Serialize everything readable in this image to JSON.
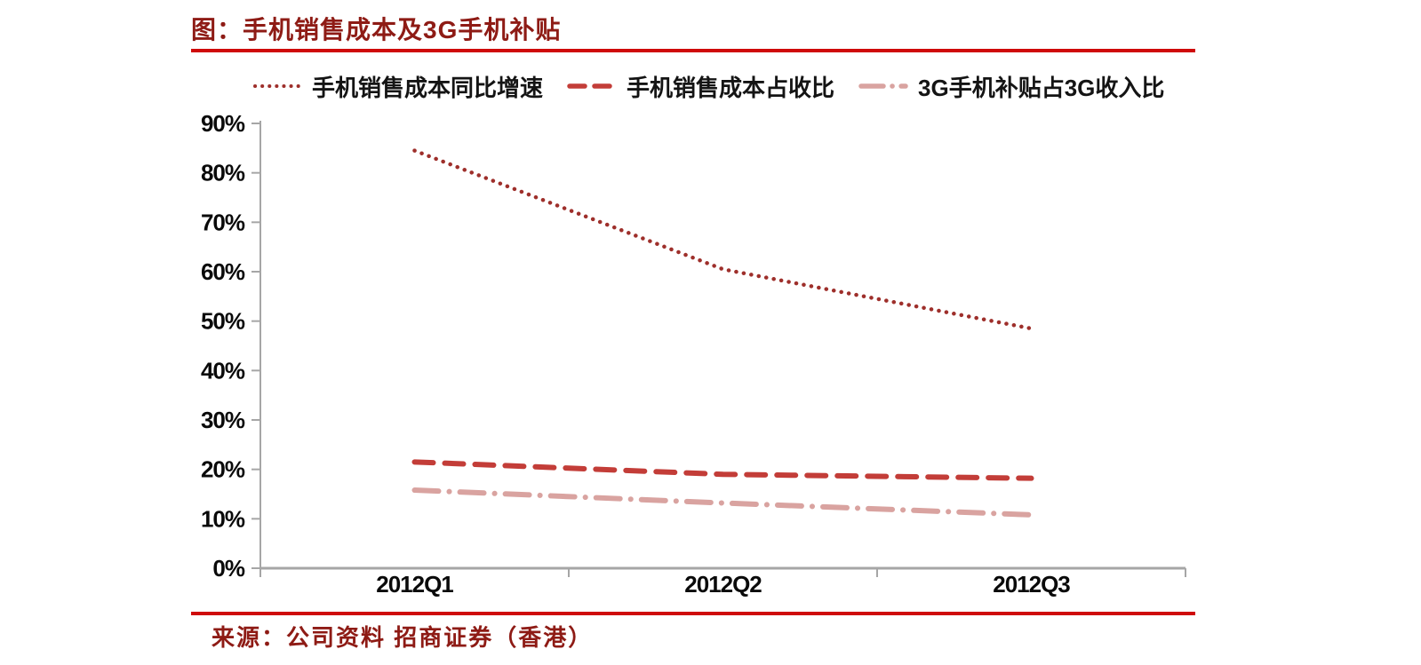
{
  "page": {
    "title": "图：手机销售成本及3G手机补贴",
    "source": "来源：公司资料 招商证券（香港）",
    "title_color": "#8e1b15",
    "rule_color": "#cf0a0a",
    "axis_color": "#a6a6a6"
  },
  "chart_data": {
    "type": "line",
    "title": "手机销售成本及3G手机补贴",
    "categories": [
      "2012Q1",
      "2012Q2",
      "2012Q3"
    ],
    "series": [
      {
        "name": "手机销售成本同比增速",
        "values": [
          84.5,
          60.5,
          48.5
        ],
        "color": "#9e2f2b",
        "dash": "dotted"
      },
      {
        "name": "手机销售成本占收比",
        "values": [
          21.5,
          19.0,
          18.2
        ],
        "color": "#c33d38",
        "dash": "dashed"
      },
      {
        "name": "3G手机补贴占3G收入比",
        "values": [
          15.8,
          13.2,
          10.8
        ],
        "color": "#d9a3a0",
        "dash": "dashdot"
      }
    ],
    "ylim": [
      0,
      90
    ],
    "y_tick_step": 10,
    "y_tick_labels": [
      "0%",
      "10%",
      "20%",
      "30%",
      "40%",
      "50%",
      "60%",
      "70%",
      "80%",
      "90%"
    ],
    "legend_position": "top",
    "grid": false,
    "xlabel": "",
    "ylabel": ""
  }
}
